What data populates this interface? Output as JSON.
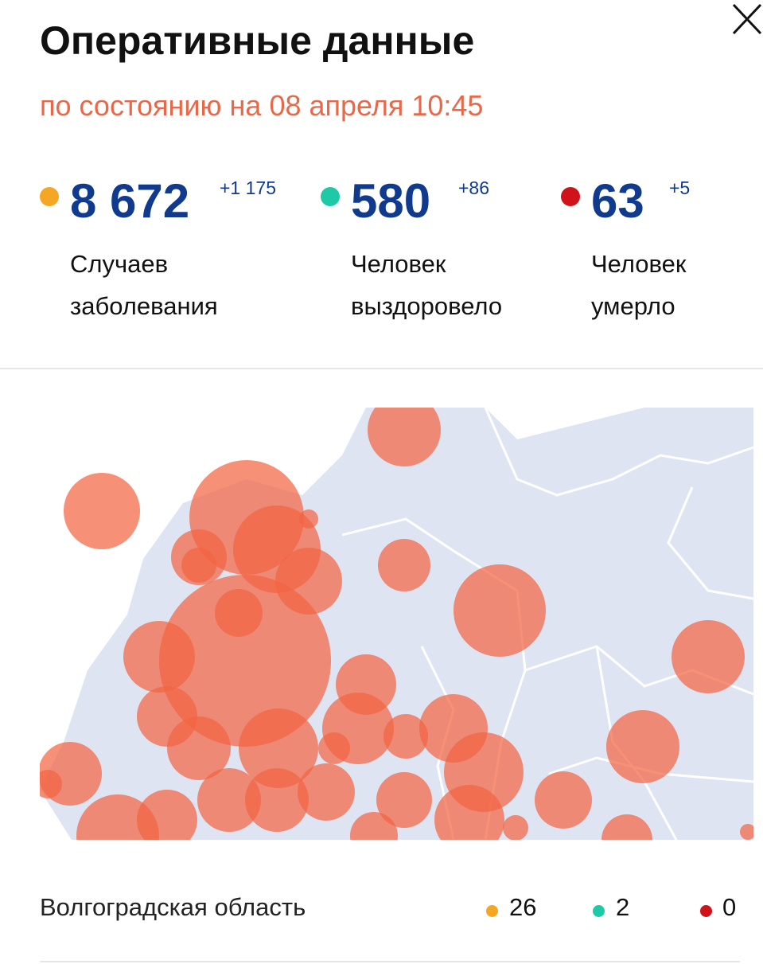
{
  "header": {
    "title": "Оперативные данные",
    "subtitle": "по состоянию на 08 апреля 10:45"
  },
  "stats": [
    {
      "value": "8 672",
      "delta": "+1 175",
      "label": [
        "Случаев",
        "заболевания"
      ],
      "color": "#f5a623"
    },
    {
      "value": "580",
      "delta": "+86",
      "label": [
        "Человек",
        "выздоровело"
      ],
      "color": "#1ec9a8"
    },
    {
      "value": "63",
      "delta": "+5",
      "label": [
        "Человек",
        "умерло"
      ],
      "color": "#d0121b"
    }
  ],
  "region": {
    "name": "Волгоградская область",
    "cases": 26,
    "recovered": 2,
    "deaths": 0
  }
}
